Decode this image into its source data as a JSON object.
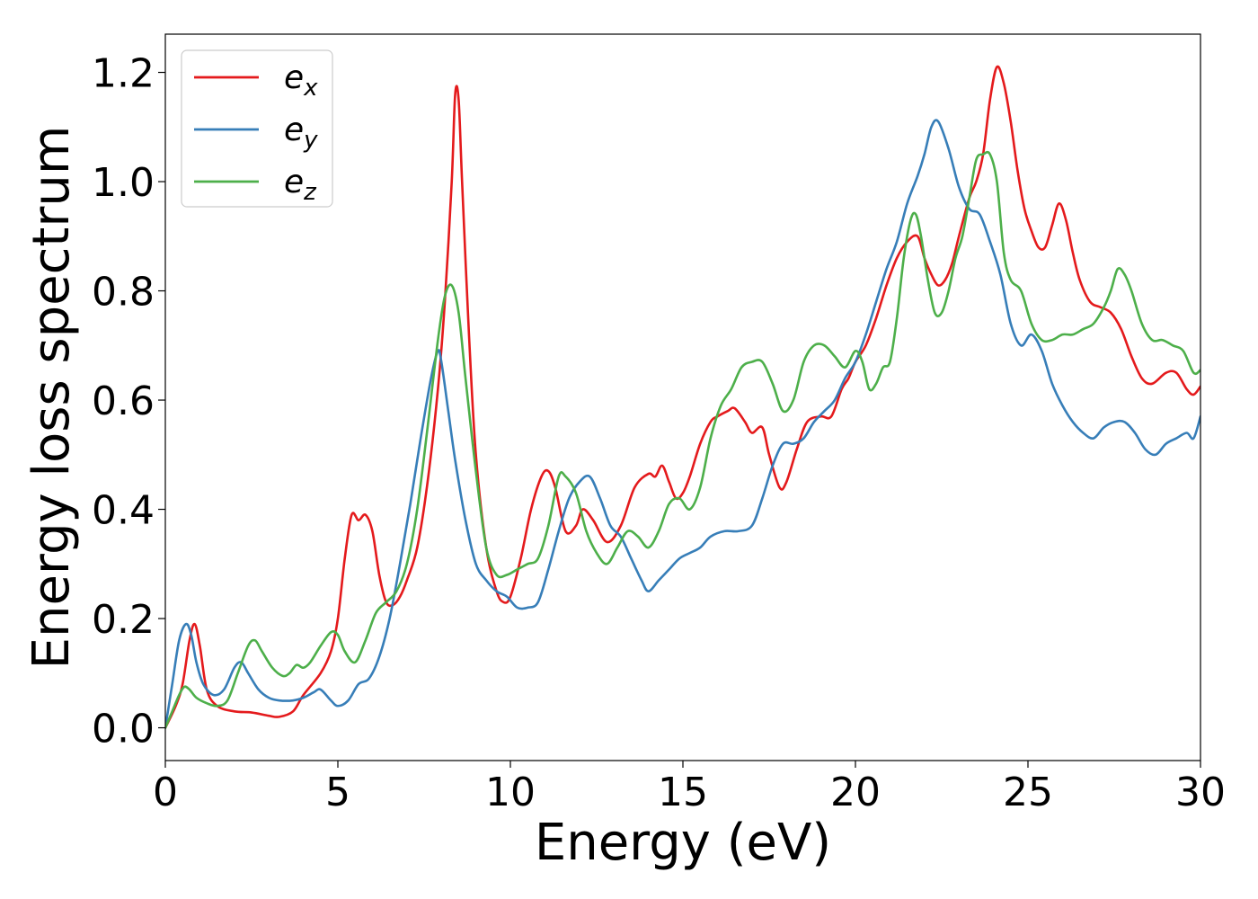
{
  "chart_data": {
    "type": "line",
    "xlabel": "Energy (eV)",
    "ylabel": "Energy loss spectrum",
    "xlim": [
      0,
      30
    ],
    "ylim": [
      -0.06,
      1.27
    ],
    "xticks": [
      0,
      5,
      10,
      15,
      20,
      25,
      30
    ],
    "xtick_labels": [
      "0",
      "5",
      "10",
      "15",
      "20",
      "25",
      "30"
    ],
    "yticks": [
      0.0,
      0.2,
      0.4,
      0.6,
      0.8,
      1.0,
      1.2
    ],
    "ytick_labels": [
      "0.0",
      "0.2",
      "0.4",
      "0.6",
      "0.8",
      "1.0",
      "1.2"
    ],
    "grid": false,
    "legend_position": "top-left",
    "series": [
      {
        "name": "e_x",
        "label_base": "e",
        "label_sub": "x",
        "color": "#e41a1c",
        "x": [
          0,
          0.3,
          0.5,
          0.7,
          0.85,
          1.0,
          1.2,
          1.5,
          2.0,
          2.5,
          3.0,
          3.3,
          3.7,
          4.0,
          4.5,
          4.8,
          5.0,
          5.2,
          5.4,
          5.6,
          5.8,
          6.0,
          6.2,
          6.4,
          6.6,
          6.8,
          7.0,
          7.3,
          7.6,
          7.9,
          8.1,
          8.3,
          8.4,
          8.5,
          8.6,
          8.8,
          9.0,
          9.3,
          9.6,
          9.8,
          10.0,
          10.3,
          10.6,
          10.9,
          11.1,
          11.3,
          11.6,
          11.9,
          12.1,
          12.4,
          12.8,
          13.2,
          13.6,
          14.0,
          14.2,
          14.4,
          14.6,
          14.8,
          15.0,
          15.2,
          15.5,
          15.8,
          16.0,
          16.3,
          16.5,
          16.8,
          17.0,
          17.3,
          17.5,
          17.8,
          18.0,
          18.3,
          18.6,
          19.0,
          19.3,
          19.6,
          19.8,
          20.0,
          20.3,
          20.6,
          20.9,
          21.2,
          21.5,
          21.8,
          22.0,
          22.2,
          22.4,
          22.6,
          22.8,
          23.0,
          23.3,
          23.5,
          23.7,
          23.9,
          24.1,
          24.3,
          24.5,
          24.7,
          24.9,
          25.1,
          25.3,
          25.5,
          25.7,
          25.9,
          26.1,
          26.3,
          26.5,
          26.8,
          27.1,
          27.4,
          27.7,
          28.0,
          28.3,
          28.6,
          29.0,
          29.3,
          29.6,
          29.8,
          30.0
        ],
        "y": [
          0.0,
          0.04,
          0.08,
          0.16,
          0.19,
          0.15,
          0.07,
          0.04,
          0.03,
          0.028,
          0.022,
          0.02,
          0.03,
          0.06,
          0.1,
          0.14,
          0.2,
          0.31,
          0.39,
          0.38,
          0.39,
          0.36,
          0.28,
          0.23,
          0.225,
          0.24,
          0.27,
          0.33,
          0.45,
          0.62,
          0.78,
          1.0,
          1.16,
          1.15,
          1.0,
          0.72,
          0.5,
          0.33,
          0.25,
          0.23,
          0.24,
          0.31,
          0.4,
          0.46,
          0.47,
          0.44,
          0.36,
          0.37,
          0.4,
          0.38,
          0.34,
          0.37,
          0.44,
          0.465,
          0.46,
          0.48,
          0.45,
          0.42,
          0.43,
          0.46,
          0.52,
          0.56,
          0.57,
          0.58,
          0.585,
          0.56,
          0.54,
          0.55,
          0.5,
          0.44,
          0.45,
          0.51,
          0.56,
          0.57,
          0.57,
          0.62,
          0.64,
          0.67,
          0.7,
          0.75,
          0.81,
          0.86,
          0.89,
          0.9,
          0.86,
          0.83,
          0.81,
          0.82,
          0.85,
          0.9,
          0.97,
          1.0,
          1.05,
          1.15,
          1.21,
          1.18,
          1.11,
          1.02,
          0.95,
          0.91,
          0.88,
          0.88,
          0.92,
          0.96,
          0.93,
          0.87,
          0.82,
          0.78,
          0.77,
          0.76,
          0.73,
          0.68,
          0.64,
          0.63,
          0.65,
          0.65,
          0.62,
          0.61,
          0.625
        ]
      },
      {
        "name": "e_y",
        "label_base": "e",
        "label_sub": "y",
        "color": "#377eb8",
        "x": [
          0,
          0.2,
          0.4,
          0.6,
          0.75,
          0.9,
          1.1,
          1.4,
          1.7,
          2.0,
          2.2,
          2.4,
          2.7,
          3.0,
          3.3,
          3.7,
          4.0,
          4.3,
          4.5,
          4.8,
          5.0,
          5.3,
          5.6,
          5.9,
          6.2,
          6.5,
          6.8,
          7.1,
          7.4,
          7.7,
          7.9,
          8.0,
          8.2,
          8.4,
          8.7,
          9.0,
          9.3,
          9.6,
          9.9,
          10.2,
          10.5,
          10.8,
          11.1,
          11.4,
          11.7,
          12.0,
          12.3,
          12.6,
          12.9,
          13.2,
          13.5,
          13.8,
          14.0,
          14.3,
          14.6,
          14.9,
          15.2,
          15.5,
          15.8,
          16.2,
          16.6,
          17.0,
          17.3,
          17.6,
          17.9,
          18.2,
          18.5,
          18.8,
          19.1,
          19.4,
          19.7,
          20.0,
          20.3,
          20.6,
          20.9,
          21.2,
          21.5,
          21.8,
          22.0,
          22.2,
          22.4,
          22.7,
          23.0,
          23.3,
          23.6,
          23.9,
          24.2,
          24.5,
          24.8,
          25.1,
          25.4,
          25.7,
          26.0,
          26.3,
          26.6,
          26.9,
          27.2,
          27.5,
          27.8,
          28.1,
          28.4,
          28.7,
          29.0,
          29.3,
          29.6,
          29.8,
          30.0
        ],
        "y": [
          0.0,
          0.08,
          0.16,
          0.19,
          0.17,
          0.12,
          0.08,
          0.06,
          0.07,
          0.11,
          0.12,
          0.1,
          0.07,
          0.055,
          0.05,
          0.05,
          0.055,
          0.065,
          0.07,
          0.05,
          0.04,
          0.05,
          0.08,
          0.09,
          0.13,
          0.2,
          0.3,
          0.41,
          0.53,
          0.64,
          0.69,
          0.67,
          0.58,
          0.49,
          0.38,
          0.3,
          0.27,
          0.25,
          0.24,
          0.22,
          0.22,
          0.23,
          0.29,
          0.36,
          0.42,
          0.45,
          0.46,
          0.42,
          0.37,
          0.35,
          0.31,
          0.27,
          0.25,
          0.27,
          0.29,
          0.31,
          0.32,
          0.33,
          0.35,
          0.36,
          0.36,
          0.37,
          0.42,
          0.48,
          0.52,
          0.52,
          0.53,
          0.56,
          0.58,
          0.6,
          0.64,
          0.67,
          0.72,
          0.78,
          0.84,
          0.89,
          0.96,
          1.01,
          1.05,
          1.1,
          1.11,
          1.06,
          0.99,
          0.95,
          0.94,
          0.89,
          0.83,
          0.74,
          0.7,
          0.72,
          0.69,
          0.63,
          0.59,
          0.56,
          0.54,
          0.53,
          0.55,
          0.56,
          0.56,
          0.54,
          0.51,
          0.5,
          0.52,
          0.53,
          0.54,
          0.53,
          0.57
        ]
      },
      {
        "name": "e_z",
        "label_base": "e",
        "label_sub": "z",
        "color": "#4daf4a",
        "x": [
          0,
          0.2,
          0.4,
          0.55,
          0.7,
          0.9,
          1.2,
          1.5,
          1.8,
          2.1,
          2.4,
          2.6,
          2.8,
          3.1,
          3.4,
          3.6,
          3.8,
          4.0,
          4.2,
          4.5,
          4.8,
          5.0,
          5.2,
          5.5,
          5.8,
          6.1,
          6.4,
          6.7,
          7.0,
          7.3,
          7.6,
          7.9,
          8.1,
          8.3,
          8.5,
          8.7,
          9.0,
          9.3,
          9.6,
          9.9,
          10.2,
          10.5,
          10.8,
          11.1,
          11.4,
          11.6,
          11.9,
          12.2,
          12.5,
          12.8,
          13.1,
          13.4,
          13.7,
          14.0,
          14.3,
          14.6,
          14.9,
          15.2,
          15.5,
          15.8,
          16.1,
          16.4,
          16.7,
          17.0,
          17.3,
          17.6,
          17.9,
          18.2,
          18.5,
          18.8,
          19.1,
          19.4,
          19.7,
          20.0,
          20.2,
          20.4,
          20.6,
          20.8,
          21.0,
          21.2,
          21.4,
          21.6,
          21.75,
          21.9,
          22.1,
          22.3,
          22.5,
          22.7,
          22.9,
          23.1,
          23.3,
          23.5,
          23.7,
          23.9,
          24.1,
          24.3,
          24.5,
          24.8,
          25.1,
          25.4,
          25.7,
          26.0,
          26.3,
          26.6,
          26.9,
          27.2,
          27.4,
          27.6,
          27.8,
          28.0,
          28.3,
          28.6,
          28.9,
          29.2,
          29.5,
          29.8,
          30.0
        ],
        "y": [
          0.0,
          0.03,
          0.06,
          0.075,
          0.07,
          0.055,
          0.045,
          0.04,
          0.05,
          0.1,
          0.15,
          0.16,
          0.14,
          0.11,
          0.095,
          0.1,
          0.115,
          0.11,
          0.12,
          0.15,
          0.175,
          0.17,
          0.14,
          0.12,
          0.16,
          0.21,
          0.23,
          0.25,
          0.3,
          0.4,
          0.55,
          0.71,
          0.79,
          0.81,
          0.76,
          0.64,
          0.47,
          0.33,
          0.28,
          0.28,
          0.29,
          0.3,
          0.31,
          0.37,
          0.46,
          0.46,
          0.43,
          0.36,
          0.32,
          0.3,
          0.33,
          0.36,
          0.35,
          0.33,
          0.36,
          0.41,
          0.42,
          0.4,
          0.44,
          0.53,
          0.59,
          0.62,
          0.66,
          0.67,
          0.67,
          0.63,
          0.58,
          0.6,
          0.67,
          0.7,
          0.7,
          0.68,
          0.66,
          0.69,
          0.67,
          0.62,
          0.63,
          0.66,
          0.67,
          0.75,
          0.86,
          0.93,
          0.94,
          0.9,
          0.82,
          0.76,
          0.76,
          0.8,
          0.86,
          0.9,
          0.97,
          1.04,
          1.05,
          1.05,
          1.0,
          0.87,
          0.82,
          0.8,
          0.74,
          0.71,
          0.71,
          0.72,
          0.72,
          0.73,
          0.74,
          0.77,
          0.8,
          0.84,
          0.83,
          0.8,
          0.74,
          0.71,
          0.71,
          0.7,
          0.69,
          0.65,
          0.655
        ]
      }
    ]
  }
}
